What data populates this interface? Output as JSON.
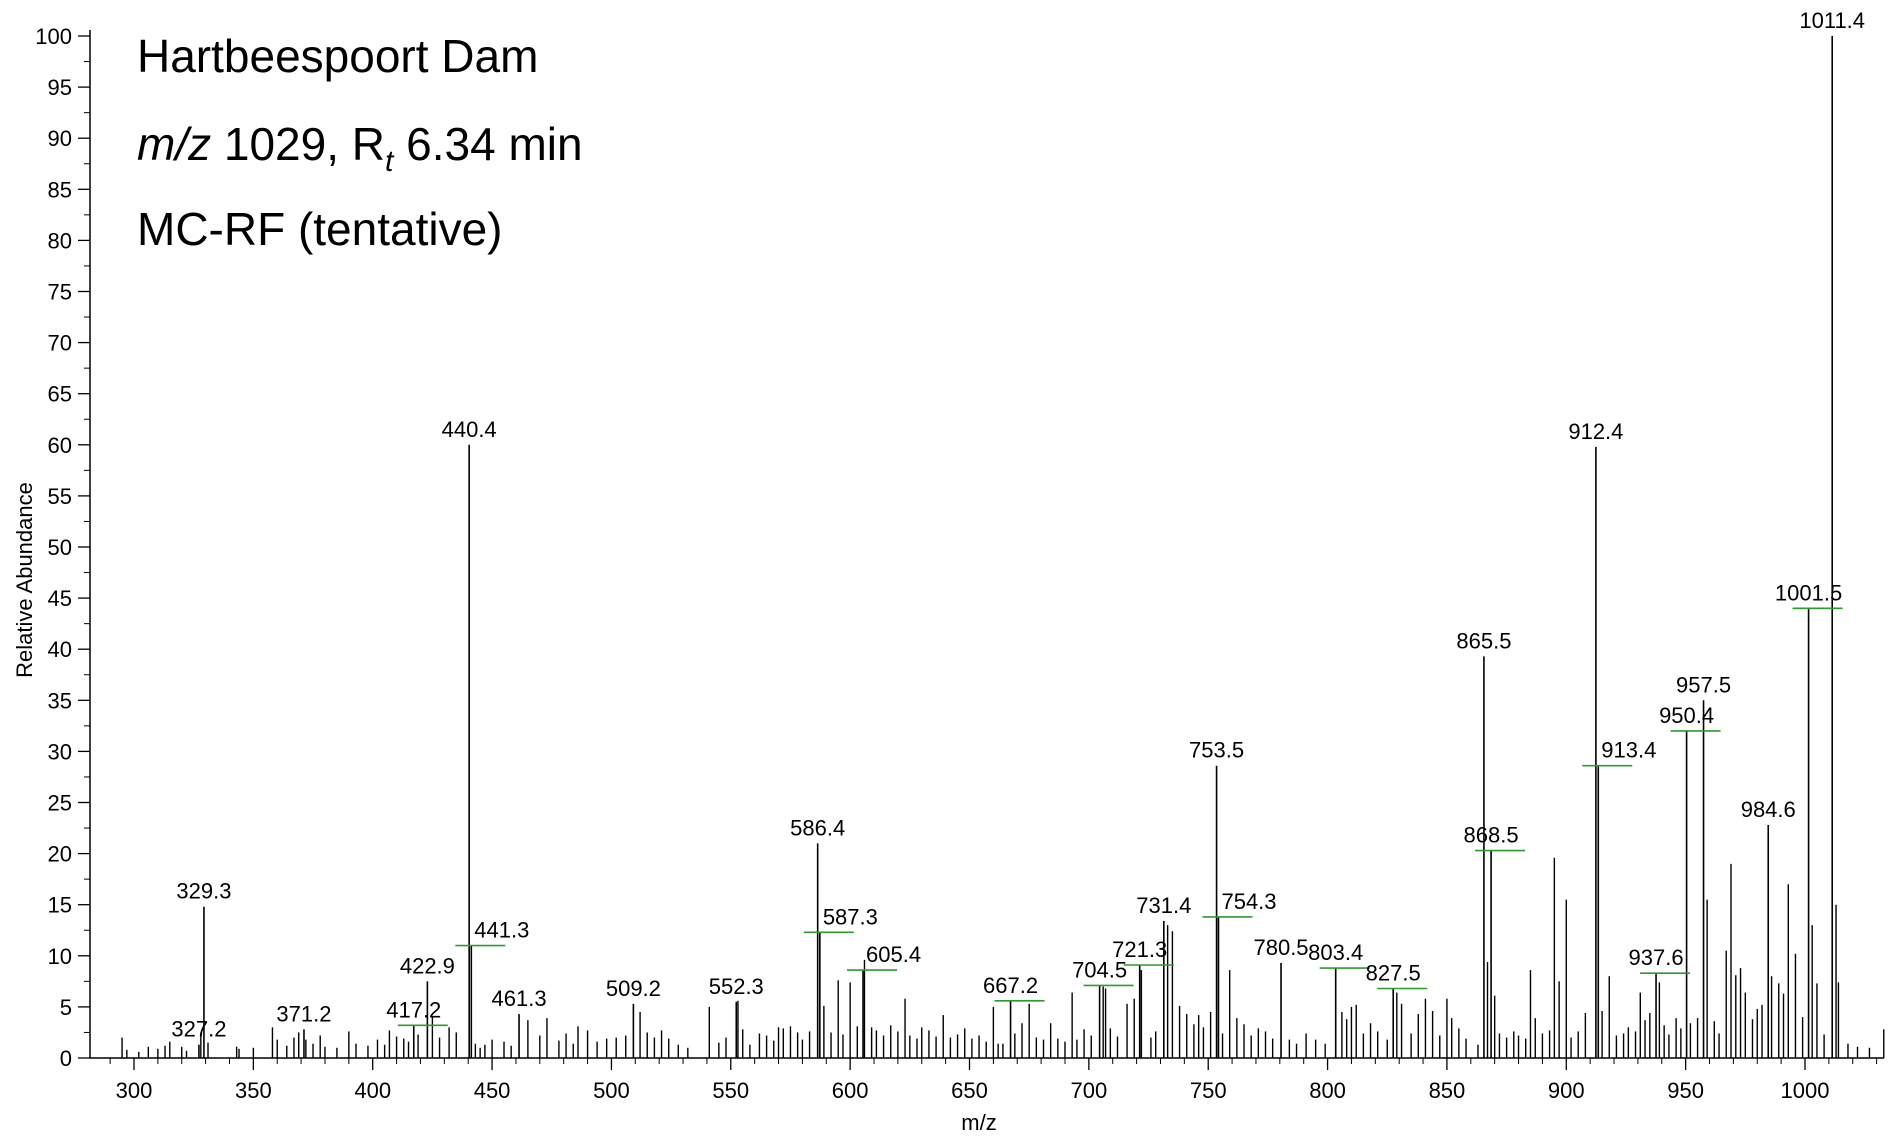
{
  "chart_data": {
    "type": "bar",
    "title_lines": [
      "Hartbeespoort Dam",
      "m/z 1029, Rt 6.34 min",
      "MC-RF (tentative)"
    ],
    "title_parts": {
      "line2_mz": "m/z",
      "line2_value": " 1029, R",
      "line2_sub": "t",
      "line2_rt": " 6.34 min"
    },
    "xlabel": "m/z",
    "ylabel": "Relative Abundance",
    "xlim": [
      280,
      1035
    ],
    "ylim": [
      0,
      100
    ],
    "x_ticks": [
      300,
      350,
      400,
      450,
      500,
      550,
      600,
      650,
      700,
      750,
      800,
      850,
      900,
      950,
      1000
    ],
    "y_ticks": [
      0,
      5,
      10,
      15,
      20,
      25,
      30,
      35,
      40,
      45,
      50,
      55,
      60,
      65,
      70,
      75,
      80,
      85,
      90,
      95,
      100
    ],
    "grid": false,
    "colors": {
      "bar": "#000000",
      "isotope_marker": "#2e9b2e"
    },
    "labeled_peaks": [
      {
        "mz": 327.2,
        "label": "327.2",
        "value": 1.3
      },
      {
        "mz": 329.3,
        "label": "329.3",
        "value": 14.8
      },
      {
        "mz": 371.2,
        "label": "371.2",
        "value": 2.8
      },
      {
        "mz": 417.2,
        "label": "417.2",
        "value": 3.2
      },
      {
        "mz": 422.9,
        "label": "422.9",
        "value": 7.5
      },
      {
        "mz": 440.4,
        "label": "440.4",
        "value": 60
      },
      {
        "mz": 441.3,
        "label": "441.3",
        "value": 11
      },
      {
        "mz": 461.3,
        "label": "461.3",
        "value": 4.3
      },
      {
        "mz": 509.2,
        "label": "509.2",
        "value": 5.3
      },
      {
        "mz": 552.3,
        "label": "552.3",
        "value": 5.5
      },
      {
        "mz": 586.4,
        "label": "586.4",
        "value": 21
      },
      {
        "mz": 587.3,
        "label": "587.3",
        "value": 12.3
      },
      {
        "mz": 605.4,
        "label": "605.4",
        "value": 8.6
      },
      {
        "mz": 667.2,
        "label": "667.2",
        "value": 5.6
      },
      {
        "mz": 704.5,
        "label": "704.5",
        "value": 7.1
      },
      {
        "mz": 721.3,
        "label": "721.3",
        "value": 9.1
      },
      {
        "mz": 731.4,
        "label": "731.4",
        "value": 13.4
      },
      {
        "mz": 753.5,
        "label": "753.5",
        "value": 28.6
      },
      {
        "mz": 754.3,
        "label": "754.3",
        "value": 13.8
      },
      {
        "mz": 780.5,
        "label": "780.5",
        "value": 9.3
      },
      {
        "mz": 803.4,
        "label": "803.4",
        "value": 8.8
      },
      {
        "mz": 827.5,
        "label": "827.5",
        "value": 6.8
      },
      {
        "mz": 865.5,
        "label": "865.5",
        "value": 39.3
      },
      {
        "mz": 868.5,
        "label": "868.5",
        "value": 20.3
      },
      {
        "mz": 912.4,
        "label": "912.4",
        "value": 59.8
      },
      {
        "mz": 913.4,
        "label": "913.4",
        "value": 28.6
      },
      {
        "mz": 937.6,
        "label": "937.6",
        "value": 8.3
      },
      {
        "mz": 950.4,
        "label": "950.4",
        "value": 32
      },
      {
        "mz": 957.5,
        "label": "957.5",
        "value": 35
      },
      {
        "mz": 984.6,
        "label": "984.6",
        "value": 22.8
      },
      {
        "mz": 1001.5,
        "label": "1001.5",
        "value": 44
      },
      {
        "mz": 1011.4,
        "label": "1011.4",
        "value": 100
      }
    ],
    "other_peaks": [
      [
        295,
        2
      ],
      [
        297,
        0.8
      ],
      [
        302,
        0.6
      ],
      [
        306,
        1.1
      ],
      [
        310,
        0.9
      ],
      [
        313,
        1.2
      ],
      [
        315,
        1.6
      ],
      [
        320,
        1.1
      ],
      [
        322,
        0.7
      ],
      [
        328,
        2.4
      ],
      [
        331,
        1.5
      ],
      [
        343,
        1.1
      ],
      [
        344,
        0.9
      ],
      [
        350,
        1.0
      ],
      [
        358,
        3.0
      ],
      [
        360,
        1.8
      ],
      [
        364,
        1.2
      ],
      [
        367,
        2.0
      ],
      [
        369,
        2.5
      ],
      [
        372,
        1.8
      ],
      [
        375,
        1.4
      ],
      [
        378,
        2.2
      ],
      [
        380,
        1.1
      ],
      [
        385,
        1.0
      ],
      [
        390,
        2.6
      ],
      [
        393,
        1.4
      ],
      [
        398,
        1.2
      ],
      [
        402,
        1.8
      ],
      [
        405,
        1.3
      ],
      [
        407,
        2.7
      ],
      [
        410,
        2.1
      ],
      [
        413,
        1.9
      ],
      [
        415,
        1.6
      ],
      [
        419,
        2.3
      ],
      [
        425,
        4.0
      ],
      [
        428,
        2.0
      ],
      [
        432,
        3.0
      ],
      [
        435,
        2.5
      ],
      [
        443,
        1.4
      ],
      [
        445,
        1.0
      ],
      [
        447,
        1.3
      ],
      [
        450,
        1.8
      ],
      [
        455,
        1.6
      ],
      [
        458,
        1.2
      ],
      [
        465,
        3.7
      ],
      [
        470,
        2.2
      ],
      [
        473,
        3.9
      ],
      [
        478,
        1.7
      ],
      [
        481,
        2.4
      ],
      [
        484,
        1.4
      ],
      [
        486,
        3.1
      ],
      [
        490,
        2.7
      ],
      [
        494,
        1.6
      ],
      [
        498,
        1.9
      ],
      [
        502,
        2.0
      ],
      [
        506,
        2.2
      ],
      [
        512,
        4.5
      ],
      [
        515,
        2.5
      ],
      [
        518,
        2.0
      ],
      [
        521,
        2.7
      ],
      [
        524,
        1.9
      ],
      [
        528,
        1.3
      ],
      [
        532,
        1.0
      ],
      [
        541,
        5.0
      ],
      [
        545,
        1.5
      ],
      [
        548,
        2.0
      ],
      [
        553,
        5.6
      ],
      [
        555,
        2.8
      ],
      [
        558,
        1.3
      ],
      [
        562,
        2.4
      ],
      [
        565,
        2.2
      ],
      [
        568,
        1.7
      ],
      [
        570,
        3.0
      ],
      [
        572,
        2.9
      ],
      [
        575,
        3.1
      ],
      [
        578,
        2.5
      ],
      [
        580,
        1.8
      ],
      [
        583,
        2.6
      ],
      [
        589,
        5.1
      ],
      [
        592,
        2.5
      ],
      [
        595,
        7.6
      ],
      [
        597,
        2.3
      ],
      [
        600,
        7.4
      ],
      [
        603,
        3.1
      ],
      [
        606,
        9.6
      ],
      [
        609,
        3.0
      ],
      [
        611,
        2.7
      ],
      [
        614,
        2.2
      ],
      [
        617,
        3.2
      ],
      [
        620,
        2.6
      ],
      [
        623,
        5.8
      ],
      [
        625,
        2.2
      ],
      [
        628,
        1.9
      ],
      [
        630,
        3.0
      ],
      [
        633,
        2.7
      ],
      [
        636,
        2.1
      ],
      [
        639,
        4.2
      ],
      [
        642,
        2.0
      ],
      [
        645,
        2.3
      ],
      [
        648,
        2.9
      ],
      [
        651,
        1.9
      ],
      [
        654,
        2.2
      ],
      [
        657,
        1.6
      ],
      [
        660,
        5.0
      ],
      [
        662,
        1.4
      ],
      [
        664,
        1.4
      ],
      [
        669,
        2.4
      ],
      [
        672,
        3.4
      ],
      [
        675,
        5.3
      ],
      [
        678,
        2.0
      ],
      [
        681,
        1.8
      ],
      [
        684,
        3.4
      ],
      [
        687,
        1.9
      ],
      [
        690,
        1.6
      ],
      [
        693,
        6.4
      ],
      [
        695,
        1.8
      ],
      [
        698,
        2.8
      ],
      [
        701,
        2.2
      ],
      [
        706,
        7.0
      ],
      [
        707,
        6.8
      ],
      [
        709,
        2.9
      ],
      [
        712,
        2.1
      ],
      [
        716,
        5.3
      ],
      [
        719,
        5.8
      ],
      [
        722,
        8.6
      ],
      [
        726,
        2.0
      ],
      [
        728,
        2.6
      ],
      [
        733,
        13
      ],
      [
        735,
        12.4
      ],
      [
        738,
        5.1
      ],
      [
        741,
        4.3
      ],
      [
        744,
        3.3
      ],
      [
        746,
        4.2
      ],
      [
        748,
        3.0
      ],
      [
        751,
        4.5
      ],
      [
        756,
        2.4
      ],
      [
        759,
        8.6
      ],
      [
        762,
        3.9
      ],
      [
        765,
        3.3
      ],
      [
        768,
        2.2
      ],
      [
        771,
        2.9
      ],
      [
        774,
        2.6
      ],
      [
        777,
        1.9
      ],
      [
        784,
        1.8
      ],
      [
        787,
        1.4
      ],
      [
        791,
        2.4
      ],
      [
        795,
        1.8
      ],
      [
        799,
        1.4
      ],
      [
        806,
        4.5
      ],
      [
        808,
        3.8
      ],
      [
        810,
        5.0
      ],
      [
        812,
        5.2
      ],
      [
        815,
        2.4
      ],
      [
        818,
        3.4
      ],
      [
        821,
        2.6
      ],
      [
        825,
        1.8
      ],
      [
        829,
        6.4
      ],
      [
        831,
        5.3
      ],
      [
        835,
        2.4
      ],
      [
        838,
        4.3
      ],
      [
        841,
        5.8
      ],
      [
        844,
        4.6
      ],
      [
        847,
        2.2
      ],
      [
        850,
        5.8
      ],
      [
        852,
        3.9
      ],
      [
        855,
        2.9
      ],
      [
        858,
        1.9
      ],
      [
        863,
        1.3
      ],
      [
        867,
        9.4
      ],
      [
        870,
        6.1
      ],
      [
        872,
        2.4
      ],
      [
        875,
        2.0
      ],
      [
        878,
        2.6
      ],
      [
        880,
        2.2
      ],
      [
        883,
        1.9
      ],
      [
        885,
        8.6
      ],
      [
        887,
        3.9
      ],
      [
        890,
        2.4
      ],
      [
        893,
        2.7
      ],
      [
        895,
        19.6
      ],
      [
        897,
        7.5
      ],
      [
        900,
        15.5
      ],
      [
        902,
        2.0
      ],
      [
        905,
        2.6
      ],
      [
        908,
        4.4
      ],
      [
        915,
        4.6
      ],
      [
        918,
        8.0
      ],
      [
        921,
        2.2
      ],
      [
        924,
        2.4
      ],
      [
        926,
        3.0
      ],
      [
        929,
        2.6
      ],
      [
        931,
        6.4
      ],
      [
        933,
        3.7
      ],
      [
        935,
        4.4
      ],
      [
        939,
        7.4
      ],
      [
        941,
        3.2
      ],
      [
        943,
        2.3
      ],
      [
        946,
        3.9
      ],
      [
        948,
        2.9
      ],
      [
        952,
        3.4
      ],
      [
        955,
        3.9
      ],
      [
        959,
        15.5
      ],
      [
        962,
        3.6
      ],
      [
        964,
        2.4
      ],
      [
        967,
        10.5
      ],
      [
        969,
        19
      ],
      [
        971,
        8.1
      ],
      [
        973,
        8.8
      ],
      [
        975,
        6.4
      ],
      [
        978,
        3.8
      ],
      [
        980,
        4.8
      ],
      [
        982,
        5.2
      ],
      [
        986,
        8.0
      ],
      [
        989,
        7.3
      ],
      [
        991,
        6.3
      ],
      [
        993,
        17
      ],
      [
        996,
        10.2
      ],
      [
        999,
        4.0
      ],
      [
        1003,
        13
      ],
      [
        1005,
        7.3
      ],
      [
        1008,
        2.3
      ],
      [
        1013,
        15
      ],
      [
        1014,
        7.4
      ],
      [
        1018,
        1.4
      ],
      [
        1022,
        1.1
      ],
      [
        1027,
        1.0
      ],
      [
        1033,
        2.8
      ]
    ]
  }
}
